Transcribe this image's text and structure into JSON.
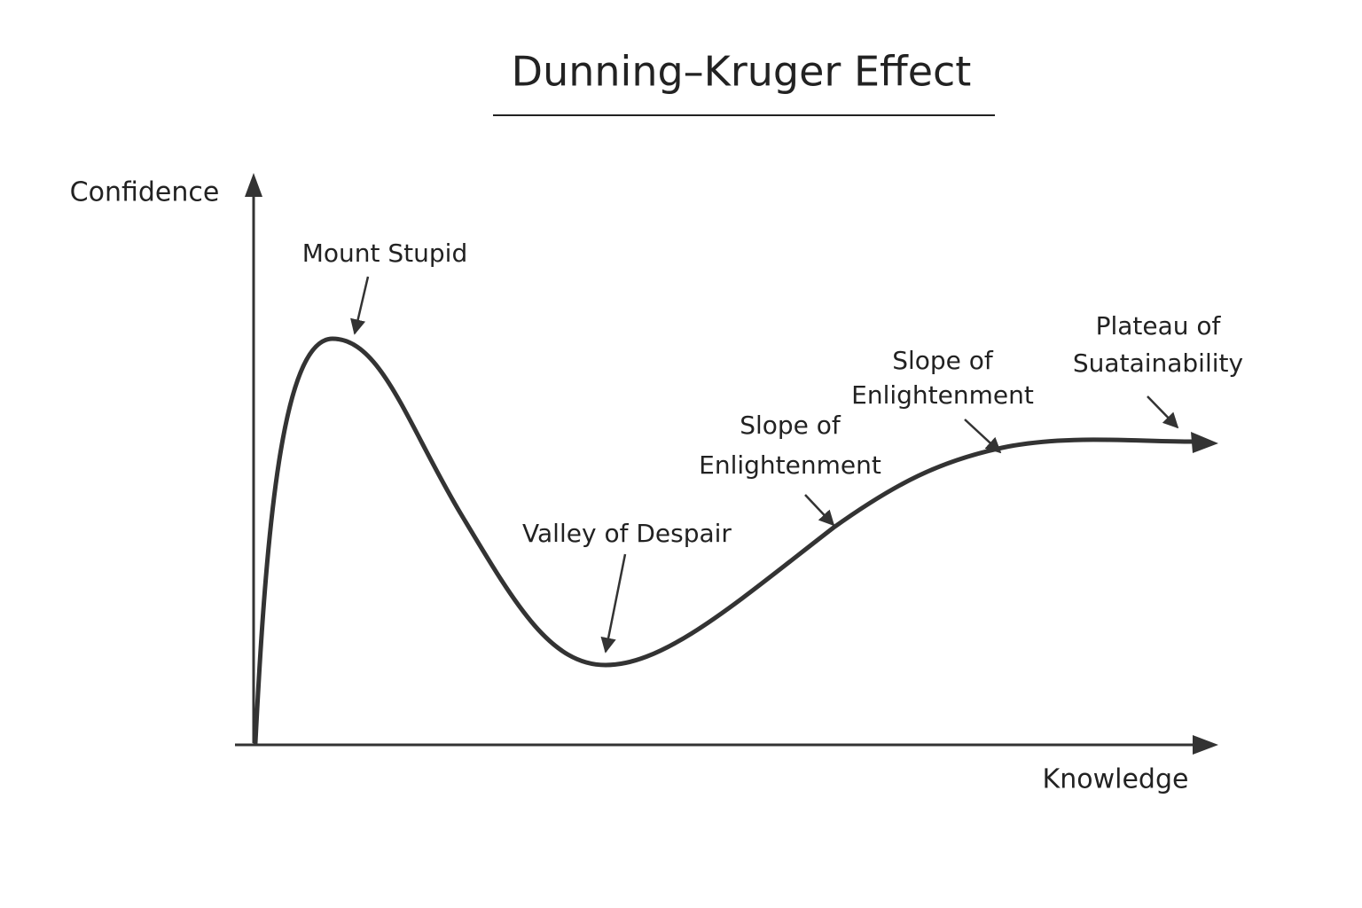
{
  "title": "Dunning–Kruger Effect",
  "axes": {
    "y_label": "Confidence",
    "x_label": "Knowledge"
  },
  "annotations": [
    {
      "lines": [
        "Mount Stupid"
      ]
    },
    {
      "lines": [
        "Valley of Despair"
      ]
    },
    {
      "lines": [
        "Slope of",
        "Enlightenment"
      ]
    },
    {
      "lines": [
        "Slope of",
        "Enlightenment"
      ]
    },
    {
      "lines": [
        "Plateau of",
        "Suatainability"
      ]
    }
  ]
}
